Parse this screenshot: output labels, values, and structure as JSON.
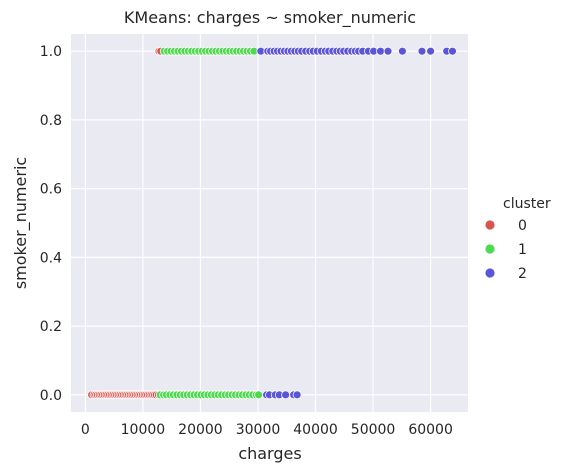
{
  "chart_data": {
    "type": "scatter",
    "title": "KMeans: charges ~ smoker_numeric",
    "xlabel": "charges",
    "ylabel": "smoker_numeric",
    "xlim": [
      -2500,
      66500
    ],
    "ylim": [
      -0.05,
      1.05
    ],
    "xticks": [
      "0",
      "10000",
      "20000",
      "30000",
      "40000",
      "50000",
      "60000"
    ],
    "xtick_values": [
      0,
      10000,
      20000,
      30000,
      40000,
      50000,
      60000
    ],
    "yticks": [
      "0.0",
      "0.2",
      "0.4",
      "0.6",
      "0.8",
      "1.0"
    ],
    "ytick_values": [
      0.0,
      0.2,
      0.4,
      0.6,
      0.8,
      1.0
    ],
    "grid": true,
    "legend_position": "right",
    "legend_title": "cluster",
    "series": [
      {
        "name": "0",
        "color": "#d9534f",
        "points": [
          [
            1100,
            0
          ],
          [
            1500,
            0
          ],
          [
            1800,
            0
          ],
          [
            2100,
            0
          ],
          [
            2400,
            0
          ],
          [
            2700,
            0
          ],
          [
            3000,
            0
          ],
          [
            3300,
            0
          ],
          [
            3600,
            0
          ],
          [
            3900,
            0
          ],
          [
            4200,
            0
          ],
          [
            4500,
            0
          ],
          [
            4800,
            0
          ],
          [
            5100,
            0
          ],
          [
            5400,
            0
          ],
          [
            5700,
            0
          ],
          [
            6000,
            0
          ],
          [
            6300,
            0
          ],
          [
            6600,
            0
          ],
          [
            6900,
            0
          ],
          [
            7200,
            0
          ],
          [
            7500,
            0
          ],
          [
            7800,
            0
          ],
          [
            8100,
            0
          ],
          [
            8400,
            0
          ],
          [
            8700,
            0
          ],
          [
            9000,
            0
          ],
          [
            9300,
            0
          ],
          [
            9600,
            0
          ],
          [
            9900,
            0
          ],
          [
            10200,
            0
          ],
          [
            10500,
            0
          ],
          [
            10800,
            0
          ],
          [
            11100,
            0
          ],
          [
            11400,
            0
          ],
          [
            11700,
            0
          ],
          [
            12000,
            0
          ],
          [
            12300,
            0
          ],
          [
            12700,
            0
          ],
          [
            12800,
            1
          ],
          [
            13100,
            1
          ]
        ]
      },
      {
        "name": "1",
        "color": "#4fd94f",
        "points": [
          [
            13000,
            0
          ],
          [
            13600,
            0
          ],
          [
            14100,
            0
          ],
          [
            14700,
            0
          ],
          [
            15300,
            0
          ],
          [
            15900,
            0
          ],
          [
            16500,
            0
          ],
          [
            17100,
            0
          ],
          [
            17700,
            0
          ],
          [
            18300,
            0
          ],
          [
            18900,
            0
          ],
          [
            19500,
            0
          ],
          [
            20100,
            0
          ],
          [
            20700,
            0
          ],
          [
            21300,
            0
          ],
          [
            21900,
            0
          ],
          [
            22500,
            0
          ],
          [
            23100,
            0
          ],
          [
            23700,
            0
          ],
          [
            24300,
            0
          ],
          [
            24900,
            0
          ],
          [
            25500,
            0
          ],
          [
            26100,
            0
          ],
          [
            26700,
            0
          ],
          [
            27300,
            0
          ],
          [
            27900,
            0
          ],
          [
            28500,
            0
          ],
          [
            29100,
            0
          ],
          [
            29700,
            0
          ],
          [
            30100,
            0
          ],
          [
            13700,
            1
          ],
          [
            14300,
            1
          ],
          [
            14900,
            1
          ],
          [
            15500,
            1
          ],
          [
            16100,
            1
          ],
          [
            16700,
            1
          ],
          [
            17300,
            1
          ],
          [
            17900,
            1
          ],
          [
            18500,
            1
          ],
          [
            19100,
            1
          ],
          [
            19700,
            1
          ],
          [
            20300,
            1
          ],
          [
            20900,
            1
          ],
          [
            21500,
            1
          ],
          [
            22100,
            1
          ],
          [
            22700,
            1
          ],
          [
            23300,
            1
          ],
          [
            23900,
            1
          ],
          [
            24500,
            1
          ],
          [
            25100,
            1
          ],
          [
            25700,
            1
          ],
          [
            26300,
            1
          ],
          [
            26900,
            1
          ],
          [
            27500,
            1
          ],
          [
            28100,
            1
          ],
          [
            28700,
            1
          ],
          [
            29300,
            1
          ]
        ]
      },
      {
        "name": "2",
        "color": "#5b55d9",
        "points": [
          [
            31500,
            0
          ],
          [
            32000,
            0
          ],
          [
            33000,
            0
          ],
          [
            33700,
            0
          ],
          [
            34800,
            0
          ],
          [
            36200,
            0
          ],
          [
            36800,
            0
          ],
          [
            30500,
            1
          ],
          [
            31700,
            1
          ],
          [
            32200,
            1
          ],
          [
            32800,
            1
          ],
          [
            33400,
            1
          ],
          [
            34000,
            1
          ],
          [
            34600,
            1
          ],
          [
            35200,
            1
          ],
          [
            35800,
            1
          ],
          [
            36400,
            1
          ],
          [
            37000,
            1
          ],
          [
            37600,
            1
          ],
          [
            38300,
            1
          ],
          [
            39000,
            1
          ],
          [
            39600,
            1
          ],
          [
            40300,
            1
          ],
          [
            41000,
            1
          ],
          [
            41700,
            1
          ],
          [
            42300,
            1
          ],
          [
            43000,
            1
          ],
          [
            43700,
            1
          ],
          [
            44300,
            1
          ],
          [
            44900,
            1
          ],
          [
            45600,
            1
          ],
          [
            46300,
            1
          ],
          [
            46900,
            1
          ],
          [
            47500,
            1
          ],
          [
            48200,
            1
          ],
          [
            49200,
            1
          ],
          [
            50100,
            1
          ],
          [
            51300,
            1
          ],
          [
            52600,
            1
          ],
          [
            55100,
            1
          ],
          [
            58500,
            1
          ],
          [
            60000,
            1
          ],
          [
            62800,
            1
          ],
          [
            63800,
            1
          ]
        ]
      }
    ]
  }
}
